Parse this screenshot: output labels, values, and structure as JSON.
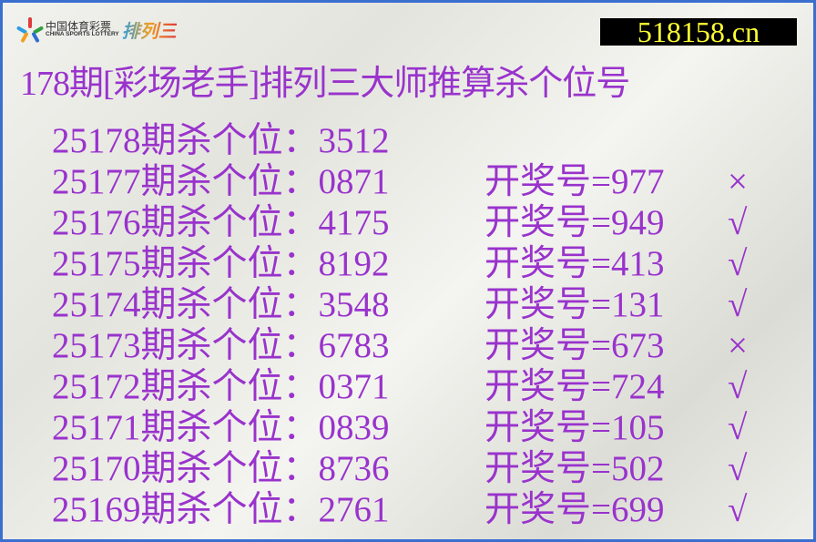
{
  "logo": {
    "cn": "中国体育彩票",
    "en": "CHINA SPORTS LOTTERY",
    "game": "排列三"
  },
  "site": "518158.cn",
  "title": "178期[彩场老手]排列三大师推算杀个位号",
  "text_color": "#9933cc",
  "rows": [
    {
      "label": "25178期杀个位：3512",
      "result": "",
      "mark": ""
    },
    {
      "label": "25177期杀个位：0871",
      "result": "开奖号=977",
      "mark": "×"
    },
    {
      "label": "25176期杀个位：4175",
      "result": "开奖号=949",
      "mark": "√"
    },
    {
      "label": "25175期杀个位：8192",
      "result": "开奖号=413",
      "mark": "√"
    },
    {
      "label": "25174期杀个位：3548",
      "result": "开奖号=131",
      "mark": "√"
    },
    {
      "label": "25173期杀个位：6783",
      "result": "开奖号=673",
      "mark": "×"
    },
    {
      "label": "25172期杀个位：0371",
      "result": "开奖号=724",
      "mark": "√"
    },
    {
      "label": "25171期杀个位：0839",
      "result": "开奖号=105",
      "mark": "√"
    },
    {
      "label": "25170期杀个位：8736",
      "result": "开奖号=502",
      "mark": "√"
    },
    {
      "label": "25169期杀个位：2761",
      "result": "开奖号=699",
      "mark": "√"
    }
  ]
}
